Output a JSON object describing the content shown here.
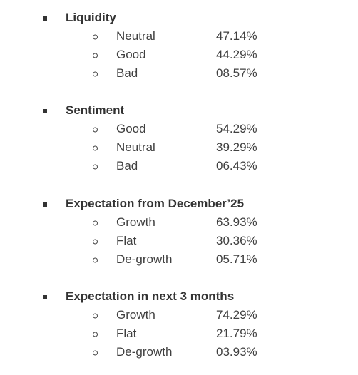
{
  "sections": [
    {
      "title": "Liquidity",
      "items": [
        {
          "label": "Neutral",
          "value": "47.14%"
        },
        {
          "label": "Good",
          "value": "44.29%"
        },
        {
          "label": "Bad",
          "value": "08.57%"
        }
      ]
    },
    {
      "title": "Sentiment",
      "items": [
        {
          "label": "Good",
          "value": "54.29%"
        },
        {
          "label": "Neutral",
          "value": "39.29%"
        },
        {
          "label": "Bad",
          "value": "06.43%"
        }
      ]
    },
    {
      "title": "Expectation from December’25",
      "items": [
        {
          "label": "Growth",
          "value": "63.93%"
        },
        {
          "label": "Flat",
          "value": "30.36%"
        },
        {
          "label": "De-growth",
          "value": "05.71%"
        }
      ]
    },
    {
      "title": "Expectation in next 3 months",
      "items": [
        {
          "label": "Growth",
          "value": "74.29%"
        },
        {
          "label": "Flat",
          "value": "21.79%"
        },
        {
          "label": "De-growth",
          "value": "03.93%"
        }
      ]
    }
  ]
}
